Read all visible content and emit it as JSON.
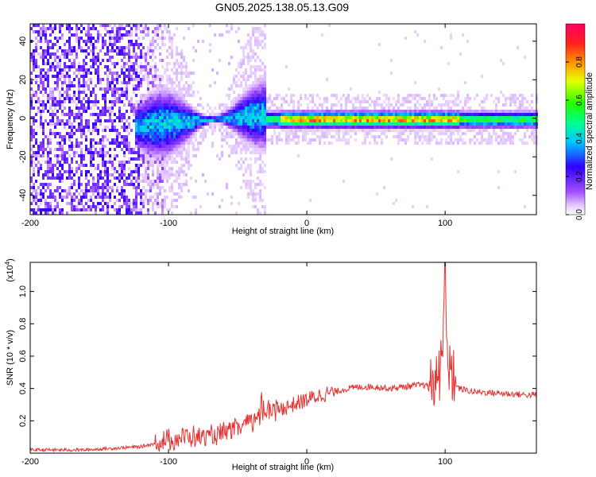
{
  "title": "GN05.2025.138.05.13.G09",
  "chart_data": [
    {
      "type": "heatmap",
      "xlabel": "Height of straight line (km)",
      "ylabel": "Frequency (Hz)",
      "xlim": [
        -200,
        166
      ],
      "ylim": [
        -50,
        49
      ],
      "x_ticks": [
        -200,
        -100,
        0,
        100
      ],
      "x_tick_labels": [
        "-200",
        "-100",
        "0",
        "100"
      ],
      "y_ticks": [
        -40,
        -20,
        0,
        20,
        40
      ],
      "y_tick_labels": [
        "-40",
        "-20",
        "0",
        "20",
        "40"
      ],
      "colorbar": {
        "label": "Normalized spectral amplitude",
        "range": [
          0,
          1
        ],
        "ticks": [
          0.0,
          0.2,
          0.4,
          0.6,
          0.8
        ],
        "tick_labels": [
          "0.0",
          "0.2",
          "0.4",
          "0.6",
          "0.8"
        ]
      },
      "grid": false,
      "description_of_structure": {
        "noise_region_x": [
          -200,
          -120
        ],
        "transition_x": [
          -120,
          -20
        ],
        "signal_line_frequency_hz": 0,
        "peak_band_x": [
          -30,
          110
        ]
      }
    },
    {
      "type": "line",
      "xlabel": "Height of straight line (km)",
      "ylabel": "SNR (10 * v/v)",
      "y_scale_label": "(x10",
      "y_scale_exponent": "4",
      "xlim": [
        -200,
        166
      ],
      "ylim": [
        0,
        1.18
      ],
      "x_ticks": [
        -200,
        -100,
        0,
        100
      ],
      "x_tick_labels": [
        "-200",
        "-100",
        "0",
        "100"
      ],
      "y_ticks": [
        0.2,
        0.4,
        0.6,
        0.8,
        1.0
      ],
      "y_tick_labels": [
        "0.2",
        "0.4",
        "0.6",
        "0.8",
        "1.0"
      ],
      "color": "#e83030",
      "series": [
        {
          "x": [
            -200,
            -180,
            -160,
            -140,
            -120,
            -110,
            -100,
            -90,
            -80,
            -70,
            -60,
            -50,
            -40,
            -35,
            -30,
            -20,
            -10,
            0,
            10,
            20,
            30,
            40,
            50,
            60,
            70,
            80,
            85,
            90,
            95,
            98,
            100,
            102,
            105,
            110,
            120,
            140,
            160,
            166
          ],
          "y": [
            0.02,
            0.02,
            0.02,
            0.03,
            0.04,
            0.06,
            0.08,
            0.1,
            0.1,
            0.1,
            0.12,
            0.15,
            0.2,
            0.22,
            0.25,
            0.27,
            0.3,
            0.33,
            0.36,
            0.38,
            0.4,
            0.41,
            0.41,
            0.4,
            0.41,
            0.42,
            0.42,
            0.4,
            0.45,
            0.6,
            1.18,
            0.55,
            0.45,
            0.4,
            0.38,
            0.37,
            0.36,
            0.36
          ]
        }
      ],
      "grid": false
    }
  ]
}
